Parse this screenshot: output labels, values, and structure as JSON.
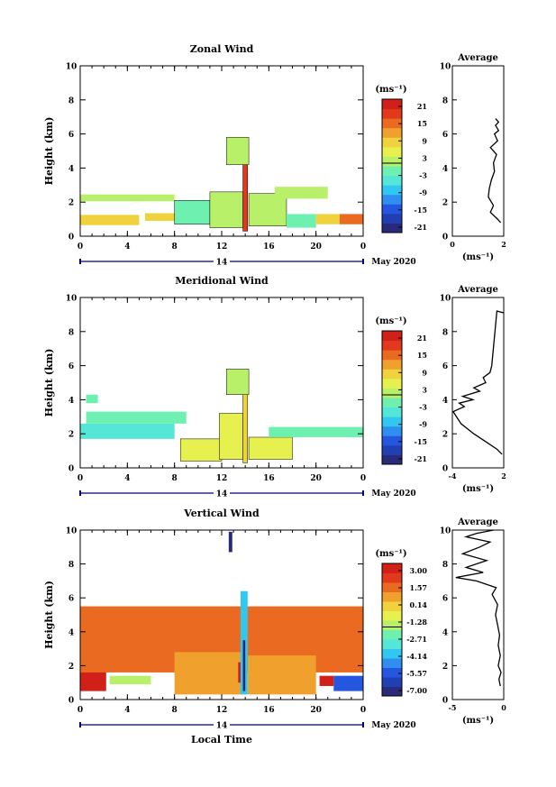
{
  "panels": [
    {
      "title": "Zonal Wind",
      "ylabel": "Height (km)",
      "xticks": [
        "0",
        "4",
        "8",
        "12",
        "16",
        "20",
        "0"
      ],
      "yticks": [
        "0",
        "2",
        "4",
        "6",
        "8",
        "10"
      ],
      "day_label": "14",
      "month_label": "May 2020",
      "unit_label": "(ms⁻¹)",
      "colorbar_ticks": [
        "21",
        "15",
        "9",
        "3",
        "-3",
        "-9",
        "-15",
        "-21"
      ],
      "avg_title": "Average",
      "avg_xticks": [
        "0",
        "2"
      ],
      "avg_xlabel": "(ms⁻¹)"
    },
    {
      "title": "Meridional Wind",
      "ylabel": "Height (km)",
      "xticks": [
        "0",
        "4",
        "8",
        "12",
        "16",
        "20",
        "0"
      ],
      "yticks": [
        "0",
        "2",
        "4",
        "6",
        "8",
        "10"
      ],
      "day_label": "14",
      "month_label": "May 2020",
      "unit_label": "(ms⁻¹)",
      "colorbar_ticks": [
        "21",
        "15",
        "9",
        "3",
        "-3",
        "-9",
        "-15",
        "-21"
      ],
      "avg_title": "Average",
      "avg_xticks": [
        "-4",
        "2"
      ],
      "avg_xlabel": "(ms⁻¹)"
    },
    {
      "title": "Vertical Wind",
      "ylabel": "Height (km)",
      "xticks": [
        "0",
        "4",
        "8",
        "12",
        "16",
        "20",
        "0"
      ],
      "yticks": [
        "0",
        "2",
        "4",
        "6",
        "8",
        "10"
      ],
      "day_label": "14",
      "month_label": "May 2020",
      "unit_label": "(ms⁻¹)",
      "colorbar_ticks": [
        "3.00",
        "1.57",
        "0.14",
        "-1.28",
        "-2.71",
        "-4.14",
        "-5.57",
        "-7.00"
      ],
      "avg_title": "Average",
      "avg_xticks": [
        "-5",
        "0"
      ],
      "avg_xlabel": "(ms⁻¹)",
      "xlabel": "Local Time"
    }
  ],
  "chart_data": [
    {
      "type": "heatmap",
      "title": "Zonal Wind",
      "ylabel": "Height (km)",
      "xlim": [
        0,
        24
      ],
      "ylim": [
        0,
        10
      ],
      "clim": [
        -24,
        24
      ],
      "colorbar_ticks": [
        21,
        15,
        9,
        3,
        -3,
        -9,
        -15,
        -21
      ],
      "blocks": [
        {
          "t0": 0.0,
          "t1": 5.0,
          "h0": 0.65,
          "h1": 1.25,
          "v": 10
        },
        {
          "t0": 0.0,
          "t1": 8.0,
          "h0": 2.05,
          "h1": 2.45,
          "v": 1
        },
        {
          "t0": 5.5,
          "t1": 8.0,
          "h0": 0.9,
          "h1": 1.35,
          "v": 9
        },
        {
          "t0": 8.0,
          "t1": 11.0,
          "h0": 0.7,
          "h1": 2.1,
          "v": -1
        },
        {
          "t0": 11.0,
          "t1": 13.8,
          "h0": 0.5,
          "h1": 2.6,
          "v": 0
        },
        {
          "t0": 13.8,
          "t1": 14.2,
          "h0": 0.3,
          "h1": 4.5,
          "v": 18
        },
        {
          "t0": 14.3,
          "t1": 17.5,
          "h0": 0.6,
          "h1": 2.5,
          "v": 0
        },
        {
          "t0": 16.5,
          "t1": 21.0,
          "h0": 2.2,
          "h1": 2.9,
          "v": 2
        },
        {
          "t0": 17.5,
          "t1": 20.0,
          "h0": 0.5,
          "h1": 1.3,
          "v": -1
        },
        {
          "t0": 20.0,
          "t1": 22.0,
          "h0": 0.7,
          "h1": 1.3,
          "v": 9
        },
        {
          "t0": 22.0,
          "t1": 24.0,
          "h0": 0.7,
          "h1": 1.3,
          "v": 17
        },
        {
          "t0": 12.4,
          "t1": 14.3,
          "h0": 4.2,
          "h1": 5.8,
          "v": 1
        }
      ],
      "avg_profile": {
        "xlim": [
          -2.5,
          2.5
        ],
        "x": [
          2.2,
          1.9,
          1.2,
          1.5,
          1.0,
          1.1,
          1.3,
          1.6,
          1.5,
          1.8,
          1.2,
          1.9,
          1.6,
          2.0,
          1.7,
          2.0,
          1.7
        ],
        "y": [
          0.8,
          1.0,
          1.4,
          1.8,
          2.3,
          2.8,
          3.3,
          3.8,
          4.3,
          4.8,
          5.2,
          5.6,
          6.0,
          6.2,
          6.5,
          6.7,
          6.9
        ]
      }
    },
    {
      "type": "heatmap",
      "title": "Meridional Wind",
      "ylabel": "Height (km)",
      "xlim": [
        0,
        24
      ],
      "ylim": [
        0,
        10
      ],
      "clim": [
        -24,
        24
      ],
      "colorbar_ticks": [
        21,
        15,
        9,
        3,
        -3,
        -9,
        -15,
        -21
      ],
      "blocks": [
        {
          "t0": 0.0,
          "t1": 8.0,
          "h0": 1.7,
          "h1": 2.6,
          "v": -4
        },
        {
          "t0": 0.5,
          "t1": 9.0,
          "h0": 2.6,
          "h1": 3.3,
          "v": -1
        },
        {
          "t0": 0.5,
          "t1": 1.5,
          "h0": 3.8,
          "h1": 4.3,
          "v": -1
        },
        {
          "t0": 8.5,
          "t1": 12.0,
          "h0": 0.4,
          "h1": 1.7,
          "v": 5
        },
        {
          "t0": 11.8,
          "t1": 13.8,
          "h0": 0.5,
          "h1": 3.2,
          "v": 4
        },
        {
          "t0": 13.8,
          "t1": 14.2,
          "h0": 0.3,
          "h1": 4.5,
          "v": 10
        },
        {
          "t0": 14.3,
          "t1": 18.0,
          "h0": 0.5,
          "h1": 1.8,
          "v": 5
        },
        {
          "t0": 16.0,
          "t1": 24.0,
          "h0": 1.8,
          "h1": 2.4,
          "v": -1
        },
        {
          "t0": 12.4,
          "t1": 14.3,
          "h0": 4.3,
          "h1": 5.8,
          "v": 2
        }
      ],
      "avg_profile": {
        "xlim": [
          -4,
          2
        ],
        "x": [
          1.8,
          1.2,
          0.0,
          -1.5,
          -3.0,
          -3.9,
          -2.6,
          -3.2,
          -1.6,
          -2.8,
          -0.8,
          -1.5,
          -0.1,
          -0.4,
          0.4,
          0.6,
          1.2,
          2.0
        ],
        "y": [
          0.8,
          1.1,
          1.5,
          2.0,
          2.6,
          3.3,
          3.6,
          3.8,
          4.0,
          4.2,
          4.5,
          4.7,
          5.0,
          5.3,
          5.6,
          6.0,
          9.2,
          9.1
        ]
      }
    },
    {
      "type": "heatmap",
      "title": "Vertical Wind",
      "ylabel": "Height (km)",
      "xlabel": "Local Time",
      "xlim": [
        0,
        24
      ],
      "ylim": [
        0,
        10
      ],
      "clim": [
        -7.0,
        3.0
      ],
      "colorbar_ticks": [
        3.0,
        1.57,
        0.14,
        -1.28,
        -2.71,
        -4.14,
        -5.57,
        -7.0
      ],
      "blocks": [
        {
          "t0": 0.0,
          "t1": 2.2,
          "h0": 0.5,
          "h1": 1.7,
          "v": 2.8
        },
        {
          "t0": 0.0,
          "t1": 24.0,
          "h0": 1.6,
          "h1": 5.5,
          "v": 0.9
        },
        {
          "t0": 8.0,
          "t1": 13.8,
          "h0": 0.3,
          "h1": 2.8,
          "v": 0.6
        },
        {
          "t0": 14.2,
          "t1": 20.0,
          "h0": 0.3,
          "h1": 2.6,
          "v": 0.7
        },
        {
          "t0": 2.5,
          "t1": 6.0,
          "h0": 0.9,
          "h1": 1.4,
          "v": -2.0
        },
        {
          "t0": 13.6,
          "t1": 14.2,
          "h0": 0.3,
          "h1": 6.4,
          "v": -3.5
        },
        {
          "t0": 13.8,
          "t1": 14.0,
          "h0": 0.5,
          "h1": 3.5,
          "v": -6.5
        },
        {
          "t0": 13.4,
          "t1": 13.6,
          "h0": 1.0,
          "h1": 2.2,
          "v": 2.6
        },
        {
          "t0": 12.6,
          "t1": 12.9,
          "h0": 8.7,
          "h1": 9.9,
          "v": -6.8
        },
        {
          "t0": 21.5,
          "t1": 24.0,
          "h0": 0.5,
          "h1": 1.4,
          "v": -5.5
        },
        {
          "t0": 20.3,
          "t1": 21.5,
          "h0": 0.8,
          "h1": 1.4,
          "v": 2.5
        }
      ],
      "avg_profile": {
        "xlim": [
          -7,
          0.5
        ],
        "x": [
          0.0,
          -0.2,
          0.1,
          -0.3,
          0.0,
          -0.3,
          -0.1,
          -0.4,
          -0.7,
          -0.4,
          -1.2,
          -0.6,
          -3.5,
          -6.5,
          -2.5,
          -5.0,
          -2.0,
          -5.5,
          -3.0,
          -1.5,
          -5.0,
          -3.5,
          -1.0
        ],
        "y": [
          0.8,
          1.2,
          1.6,
          2.0,
          2.6,
          3.2,
          3.8,
          4.4,
          5.0,
          5.6,
          6.2,
          6.6,
          7.0,
          7.2,
          7.5,
          7.8,
          8.2,
          8.6,
          9.0,
          9.3,
          9.6,
          9.8,
          10.0
        ]
      }
    }
  ],
  "colormap": [
    "#2a2a7a",
    "#1f3fb3",
    "#2456e0",
    "#2f8ef0",
    "#30c8f0",
    "#55e6d8",
    "#6ef0b0",
    "#b8f06a",
    "#e6f04e",
    "#f0d23c",
    "#f0a02c",
    "#ea6a22",
    "#e2381c",
    "#d02018"
  ],
  "colors": {
    "axis": "#000000",
    "nav_line": "#000080",
    "contour": "#000000"
  }
}
